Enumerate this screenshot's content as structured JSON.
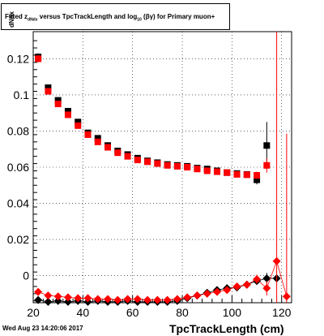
{
  "title": {
    "prefix": "Fitted",
    "z_sub": "dNdx",
    "mid": "versus TpcTrackLength and log",
    "log_sub": "10",
    "suffix": "(βγ) for Primary muon+"
  },
  "footer": "Wed Aug 23 14:20:06 2017",
  "chart_data": {
    "type": "scatter",
    "xlabel": "TpcTrackLength (cm)",
    "ylabel": "dNdx",
    "xlim": [
      20,
      124
    ],
    "ylim": [
      -0.015,
      0.135
    ],
    "xticks": [
      20,
      40,
      60,
      80,
      100,
      120
    ],
    "yticks": [
      0,
      0.02,
      0.04,
      0.06,
      0.08,
      0.1,
      0.12
    ],
    "ytick_labels": [
      "0",
      "0.02",
      "0.04",
      "0.06",
      "0.08",
      "0.1",
      "0.12"
    ],
    "grid": true,
    "series": [
      {
        "marker": "square",
        "color": "#000000",
        "x": [
          22,
          26,
          30,
          34,
          38,
          42,
          46,
          50,
          54,
          58,
          62,
          66,
          70,
          74,
          78,
          82,
          86,
          90,
          94,
          98,
          102,
          106,
          110,
          114
        ],
        "y": [
          0.121,
          0.104,
          0.097,
          0.091,
          0.085,
          0.079,
          0.076,
          0.072,
          0.069,
          0.067,
          0.065,
          0.0635,
          0.0625,
          0.0615,
          0.061,
          0.0605,
          0.0595,
          0.059,
          0.058,
          0.057,
          0.0565,
          0.056,
          0.053,
          0.072
        ],
        "err": [
          0.002,
          0.0015,
          0.0015,
          0.0012,
          0.0012,
          0.0011,
          0.001,
          0.001,
          0.001,
          0.001,
          0.001,
          0.001,
          0.001,
          0.001,
          0.001,
          0.001,
          0.001,
          0.001,
          0.001,
          0.0012,
          0.0012,
          0.0015,
          0.0025,
          0.013
        ]
      },
      {
        "marker": "square",
        "color": "#ff0000",
        "x": [
          22,
          26,
          30,
          34,
          38,
          42,
          46,
          50,
          54,
          58,
          62,
          66,
          70,
          74,
          78,
          82,
          86,
          90,
          94,
          98,
          102,
          106,
          110,
          114
        ],
        "y": [
          0.12,
          0.102,
          0.095,
          0.089,
          0.083,
          0.078,
          0.074,
          0.071,
          0.068,
          0.066,
          0.064,
          0.063,
          0.062,
          0.061,
          0.0605,
          0.06,
          0.059,
          0.058,
          0.0575,
          0.057,
          0.056,
          0.0558,
          0.0555,
          0.061
        ],
        "err": [
          0.002,
          0.0015,
          0.0015,
          0.0012,
          0.0012,
          0.0011,
          0.001,
          0.001,
          0.001,
          0.001,
          0.001,
          0.001,
          0.001,
          0.001,
          0.001,
          0.001,
          0.001,
          0.001,
          0.001,
          0.0012,
          0.0012,
          0.0015,
          0.002,
          0.004
        ]
      },
      {
        "marker": "diamond",
        "color": "#000000",
        "x": [
          22,
          26,
          30,
          34,
          38,
          42,
          46,
          50,
          54,
          58,
          62,
          66,
          70,
          74,
          78,
          82,
          86,
          90,
          94,
          98,
          102,
          106,
          110,
          114,
          118
        ],
        "y": [
          -0.0135,
          -0.0145,
          -0.014,
          -0.0145,
          -0.014,
          -0.0145,
          -0.014,
          -0.0145,
          -0.0145,
          -0.014,
          -0.0145,
          -0.0145,
          -0.0145,
          -0.0145,
          -0.014,
          -0.0125,
          -0.011,
          -0.0095,
          -0.008,
          -0.007,
          -0.0065,
          -0.005,
          -0.003,
          -0.0015,
          -0.0015
        ],
        "err": [
          0,
          0,
          0,
          0,
          0,
          0,
          0,
          0,
          0,
          0,
          0,
          0,
          0,
          0,
          0,
          0,
          0,
          0,
          0,
          0,
          0,
          0.0008,
          0.0015,
          0.003,
          0.0
        ]
      },
      {
        "marker": "diamond",
        "color": "#ff0000",
        "x": [
          22,
          26,
          30,
          34,
          38,
          42,
          46,
          50,
          54,
          58,
          62,
          66,
          70,
          74,
          78,
          82,
          86,
          90,
          94,
          98,
          102,
          106,
          110,
          114,
          118,
          122
        ],
        "y": [
          -0.009,
          -0.011,
          -0.0115,
          -0.012,
          -0.0125,
          -0.0125,
          -0.013,
          -0.013,
          -0.0135,
          -0.013,
          -0.013,
          -0.0135,
          -0.0135,
          -0.0135,
          -0.013,
          -0.012,
          -0.011,
          -0.01,
          -0.009,
          -0.008,
          -0.006,
          -0.005,
          -0.002,
          -0.007,
          0.008,
          -0.0115
        ],
        "err": [
          0,
          0,
          0,
          0,
          0,
          0,
          0,
          0,
          0,
          0,
          0,
          0,
          0,
          0,
          0,
          0,
          0,
          0,
          0,
          0,
          0.0005,
          0.0008,
          0.0025,
          0.004,
          0.15,
          0.09
        ]
      }
    ]
  }
}
